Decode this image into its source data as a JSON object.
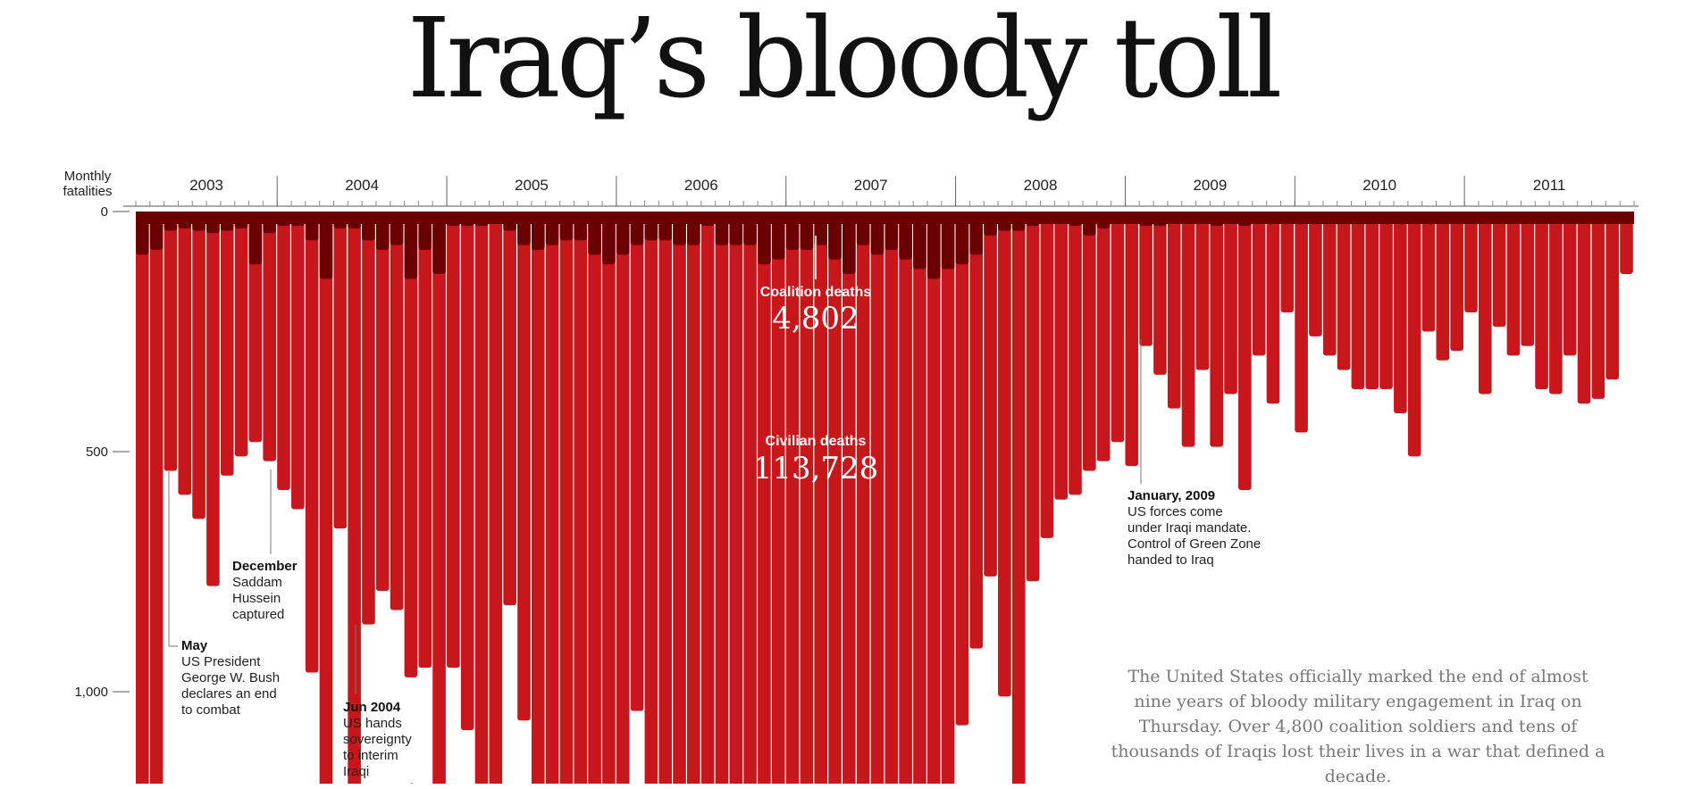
{
  "title": "Iraq’s bloody toll",
  "intro": "The United States officially marked the end of almost nine years of bloody military engagement in Iraq on Thursday. Over 4,800 coalition soldiers and tens of thousands of Iraqis lost their lives in a war that defined a decade.",
  "colors": {
    "coalition": "#6b0000",
    "civilian": "#c8161d",
    "axis": "#555555"
  },
  "chart_data": {
    "type": "bar",
    "ylabel": "Monthly fatalities",
    "ylim": [
      0,
      1200
    ],
    "yticks": [
      0,
      500,
      1000
    ],
    "ytick_labels": [
      "0",
      "500",
      "1,000"
    ],
    "year_labels": [
      "2003",
      "2004",
      "2005",
      "2006",
      "2007",
      "2008",
      "2009",
      "2010",
      "2011"
    ],
    "series": [
      {
        "name": "Coalition deaths",
        "total": "4,802",
        "values": [
          90,
          80,
          40,
          35,
          40,
          45,
          40,
          35,
          110,
          45,
          30,
          30,
          60,
          140,
          35,
          35,
          60,
          80,
          70,
          140,
          80,
          130,
          30,
          30,
          30,
          20,
          40,
          70,
          80,
          70,
          60,
          60,
          90,
          110,
          90,
          70,
          60,
          60,
          70,
          70,
          30,
          70,
          70,
          70,
          110,
          100,
          80,
          80,
          70,
          100,
          130,
          70,
          90,
          80,
          100,
          120,
          140,
          120,
          110,
          90,
          50,
          40,
          40,
          30,
          20,
          20,
          30,
          50,
          35,
          20,
          20,
          30,
          30,
          20,
          20,
          20,
          30,
          20,
          30,
          20,
          15,
          10,
          10,
          10,
          10,
          10,
          10,
          10,
          10,
          10,
          10,
          10,
          10,
          10,
          10,
          10,
          10,
          10,
          10,
          10,
          10,
          10,
          10,
          10,
          10,
          10,
          10,
          10,
          10,
          15,
          10,
          10,
          10,
          10,
          10,
          10,
          10,
          10,
          10,
          10,
          10,
          10,
          10,
          10,
          10,
          10,
          10,
          10,
          10,
          10,
          10,
          10,
          10,
          10,
          10,
          10,
          10,
          10,
          10,
          10,
          10,
          10,
          10,
          10,
          10,
          10,
          10,
          10,
          10,
          10,
          10,
          10,
          10,
          10,
          10,
          10,
          10,
          10,
          10,
          10,
          10,
          10,
          10,
          10,
          10,
          10,
          10,
          10,
          10,
          10,
          10,
          10,
          10,
          10,
          10,
          10,
          10
        ]
      },
      {
        "name": "Civilian deaths",
        "total": "113,728",
        "values": [
          1210,
          1210,
          540,
          590,
          640,
          780,
          550,
          510,
          480,
          520,
          580,
          620,
          960,
          1210,
          660,
          1210,
          860,
          790,
          830,
          970,
          950,
          1210,
          950,
          1080,
          1210,
          1210,
          820,
          1060,
          1210,
          1210,
          1210,
          1210,
          1210,
          1210,
          1210,
          1040,
          1210,
          1210,
          1210,
          1210,
          1210,
          1210,
          1210,
          1210,
          1210,
          1210,
          1210,
          1210,
          1210,
          1210,
          1210,
          1210,
          1210,
          1210,
          1210,
          1210,
          1210,
          1210,
          1070,
          910,
          760,
          1010,
          1210,
          770,
          680,
          600,
          590,
          540,
          520,
          480,
          530,
          280,
          340,
          410,
          490,
          330,
          490,
          380,
          580,
          300,
          400,
          210,
          460,
          260,
          300,
          330,
          370,
          370,
          370,
          420,
          510,
          250,
          310,
          290,
          210,
          380,
          240,
          300,
          280,
          370,
          380,
          300,
          400,
          390,
          350,
          130
        ]
      }
    ],
    "annotations": [
      {
        "heading": "May",
        "lines": [
          "US President",
          "George W. Bush",
          "declares an end",
          "to combat"
        ]
      },
      {
        "heading": "December",
        "lines": [
          "Saddam",
          "Hussein",
          "captured"
        ]
      },
      {
        "heading": "Jun 2004",
        "lines": [
          "US hands",
          "sovereignty",
          "to interim",
          "Iraqi",
          "government"
        ]
      },
      {
        "heading": "January, 2009",
        "lines": [
          "US forces come",
          "under Iraqi mandate.",
          "Control of Green Zone",
          "handed to Iraq"
        ]
      }
    ]
  }
}
